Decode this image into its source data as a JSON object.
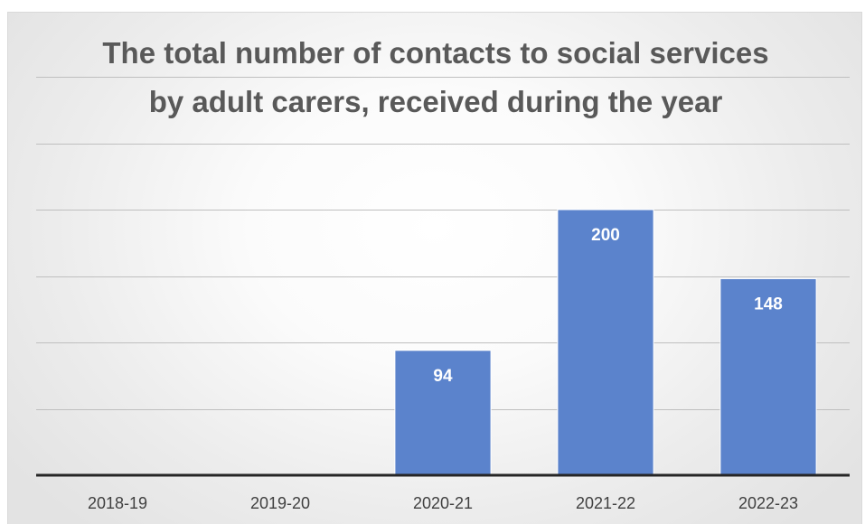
{
  "chart_data": {
    "type": "bar",
    "title": [
      "The total number of contacts to social services",
      "by adult carers, received during the year"
    ],
    "categories": [
      "2018-19",
      "2019-20",
      "2020-21",
      "2021-22",
      "2022-23"
    ],
    "values": [
      null,
      null,
      94,
      200,
      148
    ],
    "data_labels": [
      "",
      "",
      "94",
      "200",
      "148"
    ],
    "ylim": [
      0,
      300
    ],
    "gridline_step": 50,
    "grid": true,
    "legend": "none",
    "bar_color": "#5b83cc",
    "bar_edge_color": "#ffffff"
  }
}
